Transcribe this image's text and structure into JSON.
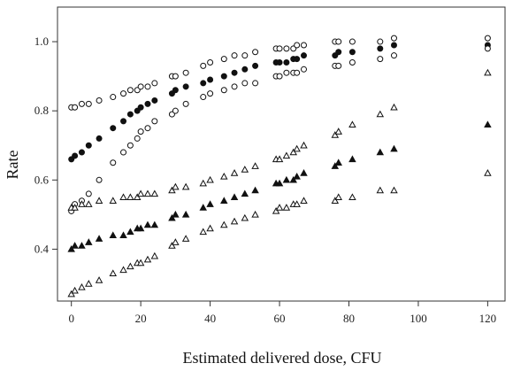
{
  "chart_data": {
    "type": "scatter",
    "title": "",
    "xlabel": "Estimated delivered dose, CFU",
    "ylabel": "Rate",
    "xlim": [
      -4,
      125
    ],
    "ylim": [
      0.25,
      1.1
    ],
    "xticks": [
      "0",
      "20",
      "40",
      "60",
      "80",
      "100",
      "120"
    ],
    "xtick_values": [
      0,
      20,
      40,
      60,
      80,
      100,
      120
    ],
    "yticks": [
      "0.4",
      "0.6",
      "0.8",
      "1.0"
    ],
    "ytick_values": [
      0.4,
      0.6,
      0.8,
      1.0
    ],
    "grid": false,
    "legend": "none",
    "x": [
      0,
      1,
      3,
      5,
      8,
      12,
      15,
      17,
      19,
      20,
      22,
      24,
      29,
      30,
      33,
      38,
      40,
      44,
      47,
      50,
      53,
      59,
      60,
      62,
      64,
      65,
      67,
      76,
      77,
      81,
      89,
      93,
      120
    ],
    "series": [
      {
        "marker": "open-circle",
        "values": [
          0.81,
          0.81,
          0.82,
          0.82,
          0.83,
          0.84,
          0.85,
          0.86,
          0.86,
          0.87,
          0.87,
          0.88,
          0.9,
          0.9,
          0.91,
          0.93,
          0.94,
          0.95,
          0.96,
          0.96,
          0.97,
          0.98,
          0.98,
          0.98,
          0.98,
          0.99,
          0.99,
          1.0,
          1.0,
          1.0,
          1.0,
          1.01,
          1.01
        ]
      },
      {
        "marker": "filled-circle",
        "values": [
          0.66,
          0.67,
          0.68,
          0.7,
          0.72,
          0.75,
          0.77,
          0.79,
          0.8,
          0.81,
          0.82,
          0.83,
          0.85,
          0.86,
          0.87,
          0.88,
          0.89,
          0.9,
          0.91,
          0.92,
          0.93,
          0.94,
          0.94,
          0.94,
          0.95,
          0.95,
          0.96,
          0.96,
          0.97,
          0.97,
          0.98,
          0.99,
          0.99
        ]
      },
      {
        "marker": "open-circle",
        "values": [
          0.51,
          0.53,
          0.54,
          0.56,
          0.6,
          0.65,
          0.68,
          0.7,
          0.72,
          0.74,
          0.75,
          0.77,
          0.79,
          0.8,
          0.82,
          0.84,
          0.85,
          0.86,
          0.87,
          0.88,
          0.88,
          0.9,
          0.9,
          0.91,
          0.91,
          0.91,
          0.92,
          0.93,
          0.93,
          0.94,
          0.95,
          0.96,
          0.98
        ]
      },
      {
        "marker": "open-triangle",
        "values": [
          0.52,
          0.52,
          0.53,
          0.53,
          0.54,
          0.54,
          0.55,
          0.55,
          0.55,
          0.56,
          0.56,
          0.56,
          0.57,
          0.58,
          0.58,
          0.59,
          0.6,
          0.61,
          0.62,
          0.63,
          0.64,
          0.66,
          0.66,
          0.67,
          0.68,
          0.69,
          0.7,
          0.73,
          0.74,
          0.76,
          0.79,
          0.81,
          0.91
        ]
      },
      {
        "marker": "filled-triangle",
        "values": [
          0.4,
          0.41,
          0.41,
          0.42,
          0.43,
          0.44,
          0.44,
          0.45,
          0.46,
          0.46,
          0.47,
          0.47,
          0.49,
          0.5,
          0.5,
          0.52,
          0.53,
          0.54,
          0.55,
          0.56,
          0.57,
          0.59,
          0.59,
          0.6,
          0.6,
          0.61,
          0.62,
          0.64,
          0.65,
          0.66,
          0.68,
          0.69,
          0.76
        ]
      },
      {
        "marker": "open-triangle",
        "values": [
          0.27,
          0.28,
          0.29,
          0.3,
          0.31,
          0.33,
          0.34,
          0.35,
          0.36,
          0.36,
          0.37,
          0.38,
          0.41,
          0.42,
          0.43,
          0.45,
          0.46,
          0.47,
          0.48,
          0.49,
          0.5,
          0.51,
          0.52,
          0.52,
          0.53,
          0.53,
          0.54,
          0.54,
          0.55,
          0.55,
          0.57,
          0.57,
          0.62
        ]
      }
    ]
  }
}
